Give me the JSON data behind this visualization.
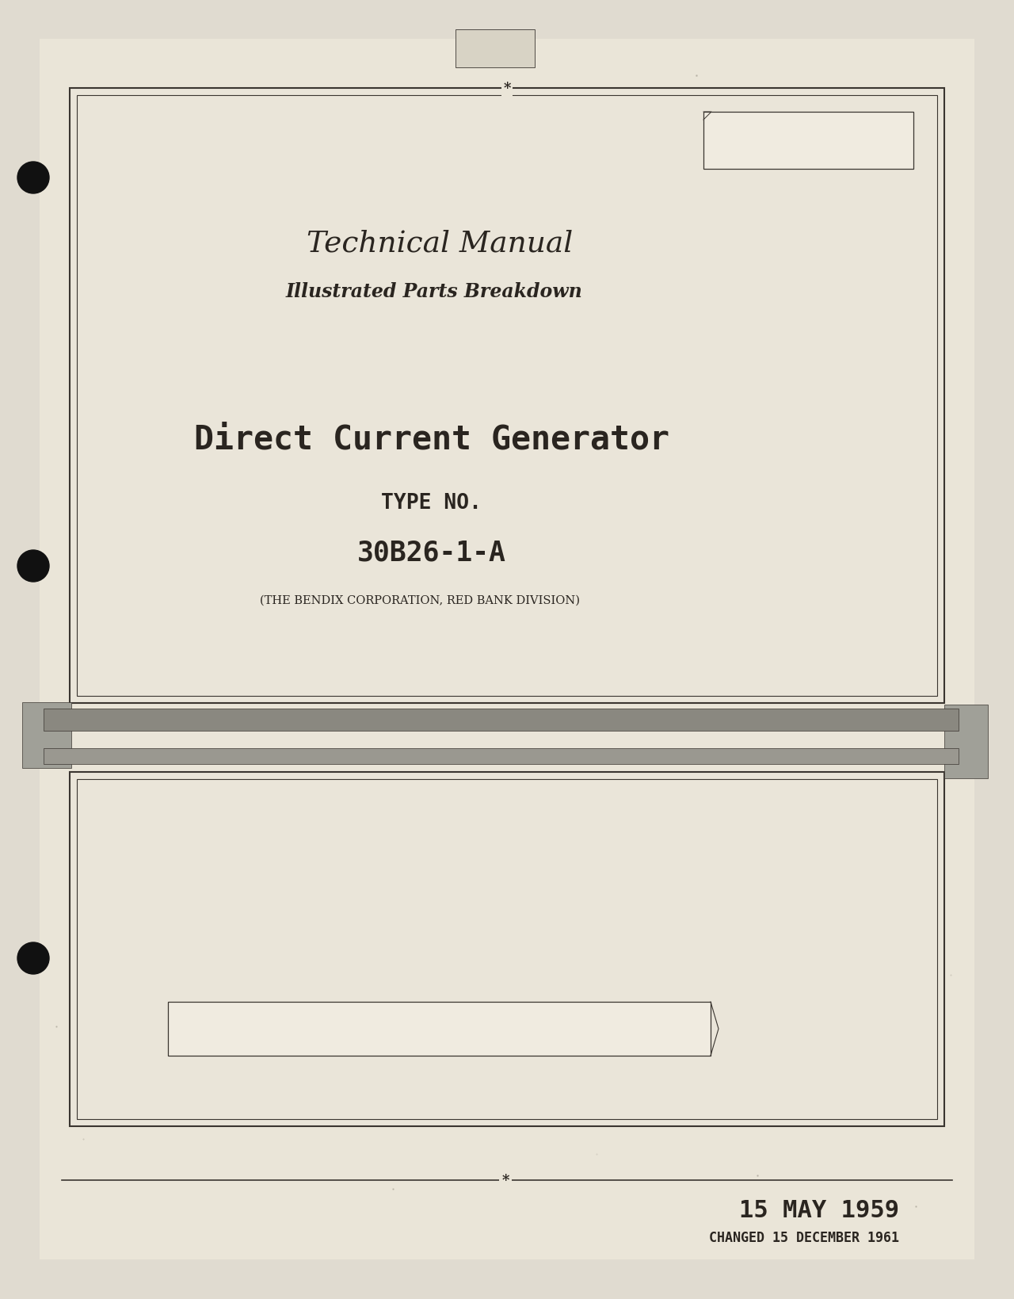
{
  "bg_color": "#c8c3b5",
  "page_bg": "#e0dbd0",
  "inner_bg": "#eae5d8",
  "title1": "Technical Manual",
  "title2": "Illustrated Parts Breakdown",
  "main_title": "Direct Current Generator",
  "type_label": "TYPE NO.",
  "type_no": "30B26-1-A",
  "manufacturer": "(THE BENDIX CORPORATION, RED BANK DIVISION)",
  "date_main": "15 MAY 1959",
  "date_changed": "CHANGED 15 DECEMBER 1961",
  "border_color": "#3a3530",
  "text_color": "#2a2520",
  "star_symbol": "*"
}
